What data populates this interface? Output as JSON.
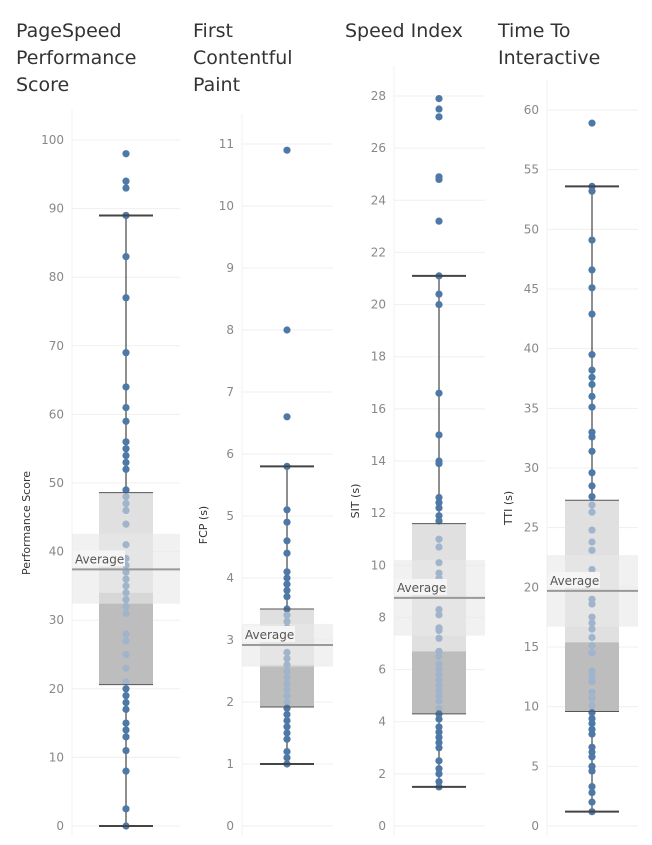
{
  "chart_data": [
    {
      "type": "box",
      "title": "PageSpeed\nPerformance\nScore",
      "ylabel": "Performance Score",
      "ylim": [
        0,
        100
      ],
      "ticks": [
        0,
        10,
        20,
        30,
        40,
        50,
        60,
        70,
        80,
        90,
        100
      ],
      "box": {
        "min": 0,
        "q1": 20.6,
        "median": 34,
        "q3": 48.6,
        "max": 89
      },
      "average": {
        "label": "Average",
        "value": 37.4,
        "band": [
          32.4,
          42.6
        ]
      },
      "points": [
        98,
        94,
        93,
        89,
        83,
        77,
        69,
        64,
        61,
        59,
        56,
        55,
        54,
        53,
        52,
        49,
        48,
        47,
        46,
        44,
        41,
        39,
        38,
        37,
        36,
        35,
        34,
        33,
        32,
        31,
        28,
        27,
        25,
        23,
        21,
        20,
        19,
        18,
        17,
        15,
        14,
        13,
        11,
        8,
        2.5,
        0
      ]
    },
    {
      "type": "box",
      "title": "First\nContentful\nPaint",
      "ylabel": "FCP (s)",
      "ylim": [
        0,
        11
      ],
      "ticks": [
        0,
        1,
        2,
        3,
        4,
        5,
        6,
        7,
        8,
        9,
        10,
        11
      ],
      "box": {
        "min": 1.0,
        "q1": 1.92,
        "median": 2.6,
        "q3": 3.5,
        "max": 5.8
      },
      "average": {
        "label": "Average",
        "value": 2.92,
        "band": [
          2.57,
          3.26
        ]
      },
      "points": [
        10.9,
        8.0,
        6.6,
        5.8,
        5.1,
        4.9,
        4.6,
        4.4,
        4.1,
        4.0,
        3.9,
        3.8,
        3.7,
        3.5,
        3.4,
        3.3,
        3.2,
        3.1,
        2.8,
        2.7,
        2.6,
        2.5,
        2.4,
        2.3,
        2.2,
        2.1,
        2.0,
        1.9,
        1.8,
        1.7,
        1.6,
        1.5,
        1.4,
        1.2,
        1.1,
        1.0
      ]
    },
    {
      "type": "box",
      "title": "Speed Index",
      "ylabel": "SIT (s)",
      "ylim": [
        0,
        28
      ],
      "ticks": [
        0,
        2,
        4,
        6,
        8,
        10,
        12,
        14,
        16,
        18,
        20,
        22,
        24,
        26,
        28
      ],
      "box": {
        "min": 1.5,
        "q1": 4.3,
        "median": 6.7,
        "q3": 11.6,
        "max": 21.1
      },
      "average": {
        "label": "Average",
        "value": 8.75,
        "band": [
          7.3,
          10.2
        ]
      },
      "points": [
        27.9,
        27.5,
        27.2,
        24.9,
        24.8,
        23.2,
        21.1,
        20.4,
        20.0,
        16.6,
        15.0,
        14.0,
        13.9,
        12.6,
        12.4,
        12.2,
        11.9,
        11.7,
        11.0,
        10.7,
        10.1,
        9.7,
        9.5,
        8.3,
        8.1,
        7.6,
        7.5,
        7.2,
        6.7,
        6.5,
        6.2,
        6.0,
        5.8,
        5.6,
        5.4,
        5.2,
        5.0,
        4.8,
        4.5,
        4.3,
        4.1,
        3.8,
        3.6,
        3.4,
        3.2,
        3.0,
        2.5,
        2.2,
        2.0,
        1.7,
        1.5
      ]
    },
    {
      "type": "box",
      "title": "Time To\nInteractive",
      "ylabel": "TTI (s)",
      "ylim": [
        0,
        60
      ],
      "ticks": [
        0,
        5,
        10,
        15,
        20,
        25,
        30,
        35,
        40,
        45,
        50,
        55,
        60
      ],
      "box": {
        "min": 1.2,
        "q1": 9.6,
        "median": 15.4,
        "q3": 27.3,
        "max": 53.6
      },
      "average": {
        "label": "Average",
        "value": 19.7,
        "band": [
          16.7,
          22.7
        ]
      },
      "points": [
        58.9,
        53.6,
        53.2,
        49.1,
        46.6,
        45.1,
        42.9,
        39.5,
        38.2,
        37.6,
        37.0,
        36.0,
        35.1,
        33.0,
        32.6,
        31.4,
        29.6,
        28.5,
        27.6,
        26.9,
        26.3,
        24.8,
        23.8,
        23.1,
        21.5,
        21.0,
        19.0,
        18.6,
        17.5,
        17.0,
        16.5,
        15.8,
        15.1,
        14.5,
        13.0,
        12.5,
        12.1,
        11.2,
        10.7,
        10.1,
        9.5,
        9.0,
        8.6,
        8.1,
        7.7,
        6.6,
        6.2,
        5.8,
        5.0,
        4.6,
        3.3,
        2.8,
        2.0,
        1.2
      ]
    }
  ],
  "colors": {
    "point": "#4e79a7",
    "point_in_box": "#a0b4cb",
    "whisker": "#444444",
    "box_upper": "#e0e0e0",
    "box_lower": "#bdbdbd",
    "avg_band": "#e8e8e8",
    "avg_line": "#999999",
    "grid": "#efefef"
  }
}
